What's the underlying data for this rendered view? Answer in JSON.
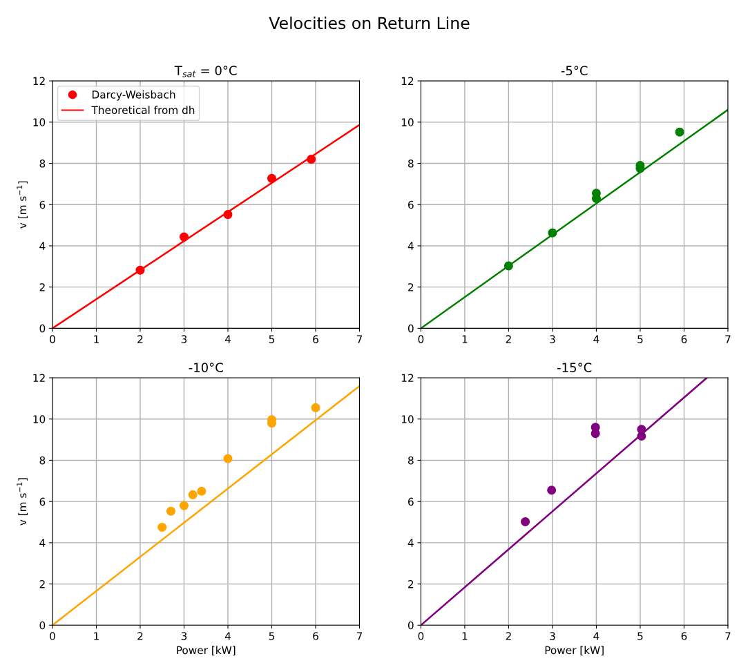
{
  "chart_data": [
    {
      "type": "scatter",
      "annotations": [
        "Velocities on Return Line"
      ],
      "title": "T$_{sat}$ = 0°C",
      "ylabel": "v [m s$^{−1}$]",
      "xlim": [
        0,
        7
      ],
      "ylim": [
        0,
        12
      ],
      "xticks": [
        0,
        1,
        2,
        3,
        4,
        5,
        6,
        7
      ],
      "yticks": [
        0,
        2,
        4,
        6,
        8,
        10,
        12
      ],
      "grid": true,
      "legend": "top left",
      "series": [
        {
          "name": "Darcy-Weisbach",
          "color": "#ff0000",
          "marker": "circle",
          "x": [
            2,
            3,
            4,
            5,
            5.9
          ],
          "values": [
            2.82,
            4.43,
            5.52,
            7.27,
            8.2
          ]
        },
        {
          "type": "line",
          "name": "Theoretical from dh",
          "color": "#ff0000",
          "line_style": "solid",
          "x": [
            0,
            7
          ],
          "values": [
            0,
            9.87
          ]
        }
      ]
    },
    {
      "type": "scatter",
      "title": "-5°C",
      "xlim": [
        0,
        7
      ],
      "ylim": [
        0,
        12
      ],
      "xticks": [
        0,
        1,
        2,
        3,
        4,
        5,
        6,
        7
      ],
      "yticks": [
        0,
        2,
        4,
        6,
        8,
        10,
        12
      ],
      "grid": true,
      "series": [
        {
          "color": "#008000",
          "marker": "circle",
          "x": [
            2,
            3,
            4,
            4,
            5,
            5,
            5.9
          ],
          "values": [
            3.03,
            4.63,
            6.55,
            6.3,
            7.9,
            7.75,
            9.52
          ]
        },
        {
          "type": "line",
          "color": "#008000",
          "line_style": "solid",
          "x": [
            0,
            7
          ],
          "values": [
            0,
            10.6
          ]
        }
      ]
    },
    {
      "type": "scatter",
      "title": "-10°C",
      "xlabel": "Power [kW]",
      "ylabel": "v [m s$^{−1}$]",
      "xlim": [
        0,
        7
      ],
      "ylim": [
        0,
        12
      ],
      "xticks": [
        0,
        1,
        2,
        3,
        4,
        5,
        6,
        7
      ],
      "yticks": [
        0,
        2,
        4,
        6,
        8,
        10,
        12
      ],
      "grid": true,
      "series": [
        {
          "color": "#ffa500",
          "marker": "circle",
          "x": [
            2.5,
            2.7,
            3,
            3.2,
            3.4,
            4,
            5,
            5,
            6
          ],
          "values": [
            4.75,
            5.53,
            5.8,
            6.33,
            6.5,
            8.08,
            9.97,
            9.8,
            10.55
          ]
        },
        {
          "type": "line",
          "color": "#ffa500",
          "line_style": "solid",
          "x": [
            0,
            7
          ],
          "values": [
            0,
            11.6
          ]
        }
      ]
    },
    {
      "type": "scatter",
      "title": "-15°C",
      "xlabel": "Power [kW]",
      "xlim": [
        0,
        7
      ],
      "ylim": [
        0,
        12
      ],
      "xticks": [
        0,
        1,
        2,
        3,
        4,
        5,
        6,
        7
      ],
      "yticks": [
        0,
        2,
        4,
        6,
        8,
        10,
        12
      ],
      "grid": true,
      "series": [
        {
          "color": "#800080",
          "marker": "circle",
          "x": [
            2.38,
            2.98,
            3.98,
            3.98,
            5.03,
            5.03
          ],
          "values": [
            5.02,
            6.55,
            9.6,
            9.3,
            9.5,
            9.17
          ]
        },
        {
          "type": "line",
          "color": "#800080",
          "line_style": "solid",
          "x": [
            0,
            6.52
          ],
          "values": [
            0,
            12
          ]
        }
      ]
    }
  ]
}
